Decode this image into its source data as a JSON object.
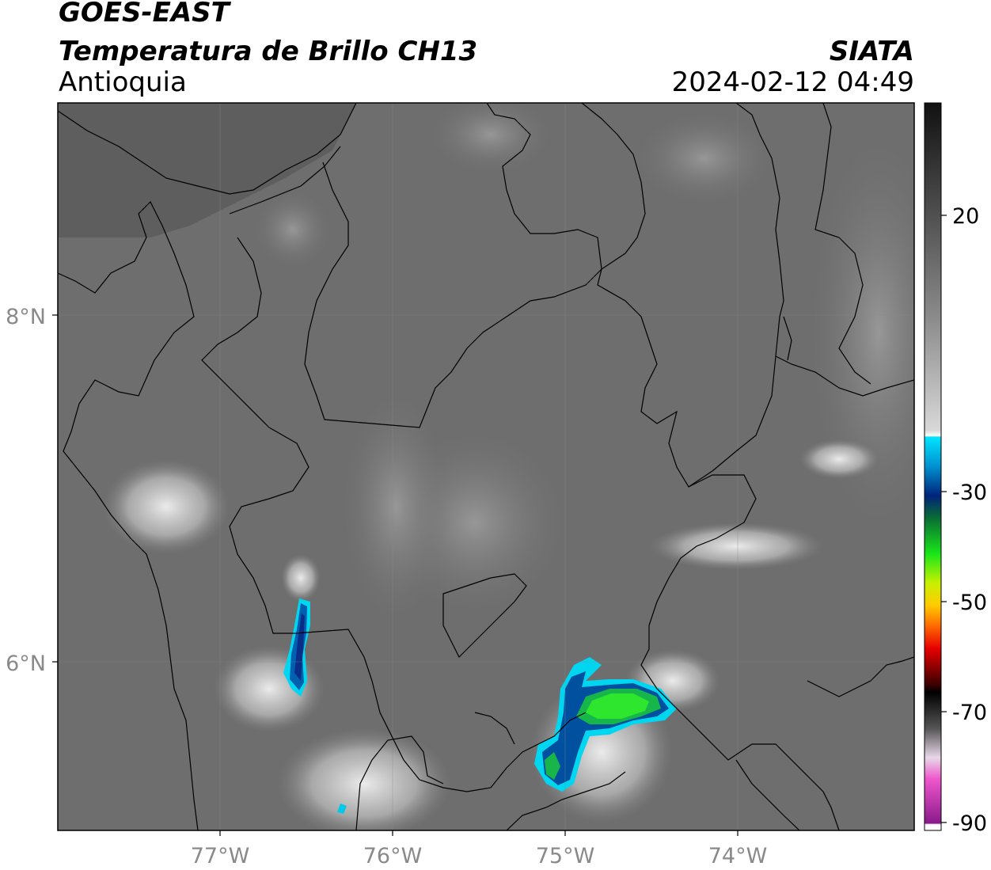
{
  "header": {
    "title_line1": "GOES-EAST",
    "title_line2": "Temperatura de Brillo CH13",
    "region": "Antioquia",
    "brand": "SIATA",
    "timestamp": "2024-02-12 04:49"
  },
  "axes": {
    "lat_ticks": [
      "8°N",
      "6°N"
    ],
    "lon_ticks": [
      "77°W",
      "76°W",
      "75°W",
      "74°W"
    ]
  },
  "colorbar": {
    "ticks": [
      "20",
      "-30",
      "-50",
      "-70",
      "-90"
    ],
    "colors": {
      "gray_dark": "#1a1a1a",
      "gray_light": "#ffffff",
      "cyan": "#00e5ff",
      "blue": "#00237a",
      "green": "#1de31d",
      "yellow": "#ffee00",
      "red": "#e60000",
      "magenta": "#dd44bb"
    }
  },
  "map_features": {
    "cold_cloud_cells": [
      "blue-cell-west",
      "green-cell-center",
      "cyan-spot-southwest"
    ]
  }
}
